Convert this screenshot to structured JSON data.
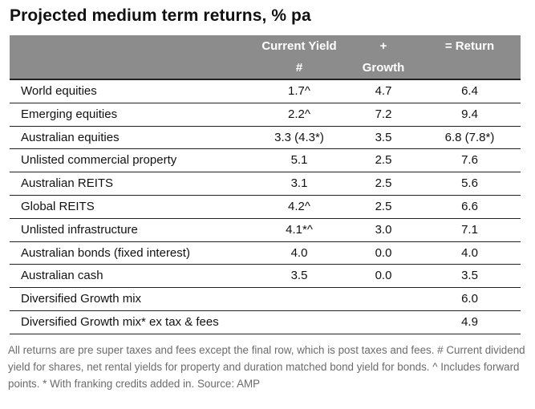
{
  "title": "Projected medium term returns, % pa",
  "header": {
    "yield_line1": "Current Yield",
    "yield_line2": "#",
    "growth_line1": "+",
    "growth_line2": "Growth",
    "return_label": "= Return"
  },
  "rows": [
    {
      "label": "World equities",
      "yield": "1.7^",
      "growth": "4.7",
      "ret": "6.4"
    },
    {
      "label": "Emerging equities",
      "yield": "2.2^",
      "growth": "7.2",
      "ret": "9.4"
    },
    {
      "label": "Australian equities",
      "yield": "3.3 (4.3*)",
      "growth": "3.5",
      "ret": "6.8 (7.8*)"
    },
    {
      "label": "Unlisted commercial property",
      "yield": "5.1",
      "growth": "2.5",
      "ret": "7.6"
    },
    {
      "label": "Australian REITS",
      "yield": "3.1",
      "growth": "2.5",
      "ret": "5.6"
    },
    {
      "label": "Global REITS",
      "yield": "4.2^",
      "growth": "2.5",
      "ret": "6.6"
    },
    {
      "label": "Unlisted infrastructure",
      "yield": "4.1*^",
      "growth": "3.0",
      "ret": "7.1"
    },
    {
      "label": "Australian bonds (fixed interest)",
      "yield": "4.0",
      "growth": "0.0",
      "ret": "4.0"
    },
    {
      "label": "Australian cash",
      "yield": "3.5",
      "growth": "0.0",
      "ret": "3.5"
    },
    {
      "label": "Diversified Growth mix",
      "yield": "",
      "growth": "",
      "ret": "6.0"
    },
    {
      "label": "Diversified Growth mix* ex tax & fees",
      "yield": "",
      "growth": "",
      "ret": "4.9"
    }
  ],
  "footnote": "All returns are pre super taxes and fees except the final row, which is post taxes and fees. # Current dividend yield for shares, net rental yields for property and duration matched bond yield for bonds. ^ Includes forward points. * With franking credits added in. Source: AMP",
  "chart_data": {
    "type": "table",
    "title": "Projected medium term returns, % pa",
    "columns": [
      "",
      "Current Yield #",
      "+ Growth",
      "= Return"
    ],
    "rows": [
      [
        "World equities",
        "1.7^",
        "4.7",
        "6.4"
      ],
      [
        "Emerging equities",
        "2.2^",
        "7.2",
        "9.4"
      ],
      [
        "Australian equities",
        "3.3 (4.3*)",
        "3.5",
        "6.8 (7.8*)"
      ],
      [
        "Unlisted commercial property",
        "5.1",
        "2.5",
        "7.6"
      ],
      [
        "Australian REITS",
        "3.1",
        "2.5",
        "5.6"
      ],
      [
        "Global REITS",
        "4.2^",
        "2.5",
        "6.6"
      ],
      [
        "Unlisted infrastructure",
        "4.1*^",
        "3.0",
        "7.1"
      ],
      [
        "Australian bonds (fixed interest)",
        "4.0",
        "0.0",
        "4.0"
      ],
      [
        "Australian cash",
        "3.5",
        "0.0",
        "3.5"
      ],
      [
        "Diversified Growth mix",
        "",
        "",
        "6.0"
      ],
      [
        "Diversified Growth mix* ex tax & fees",
        "",
        "",
        "4.9"
      ]
    ]
  }
}
